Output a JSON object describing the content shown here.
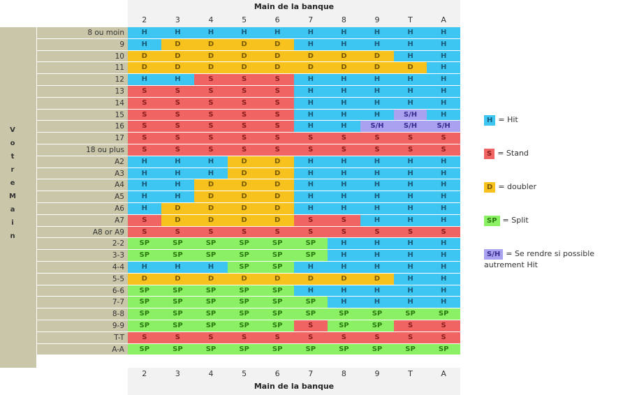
{
  "chart_data": {
    "type": "table",
    "title": "Main de la banque",
    "row_axis_label": "Votre Main",
    "columns": [
      "2",
      "3",
      "4",
      "5",
      "6",
      "7",
      "8",
      "9",
      "T",
      "A"
    ],
    "rows": [
      {
        "label": "8 ou moin",
        "cells": [
          "H",
          "H",
          "H",
          "H",
          "H",
          "H",
          "H",
          "H",
          "H",
          "H"
        ]
      },
      {
        "label": "9",
        "cells": [
          "H",
          "D",
          "D",
          "D",
          "D",
          "H",
          "H",
          "H",
          "H",
          "H"
        ]
      },
      {
        "label": "10",
        "cells": [
          "D",
          "D",
          "D",
          "D",
          "D",
          "D",
          "D",
          "D",
          "H",
          "H"
        ]
      },
      {
        "label": "11",
        "cells": [
          "D",
          "D",
          "D",
          "D",
          "D",
          "D",
          "D",
          "D",
          "D",
          "H"
        ]
      },
      {
        "label": "12",
        "cells": [
          "H",
          "H",
          "S",
          "S",
          "S",
          "H",
          "H",
          "H",
          "H",
          "H"
        ]
      },
      {
        "label": "13",
        "cells": [
          "S",
          "S",
          "S",
          "S",
          "S",
          "H",
          "H",
          "H",
          "H",
          "H"
        ]
      },
      {
        "label": "14",
        "cells": [
          "S",
          "S",
          "S",
          "S",
          "S",
          "H",
          "H",
          "H",
          "H",
          "H"
        ]
      },
      {
        "label": "15",
        "cells": [
          "S",
          "S",
          "S",
          "S",
          "S",
          "H",
          "H",
          "H",
          "S/H",
          "H"
        ]
      },
      {
        "label": "16",
        "cells": [
          "S",
          "S",
          "S",
          "S",
          "S",
          "H",
          "H",
          "S/H",
          "S/H",
          "S/H"
        ]
      },
      {
        "label": "17",
        "cells": [
          "S",
          "S",
          "S",
          "S",
          "S",
          "S",
          "S",
          "S",
          "S",
          "S"
        ]
      },
      {
        "label": "18 ou plus",
        "cells": [
          "S",
          "S",
          "S",
          "S",
          "S",
          "S",
          "S",
          "S",
          "S",
          "S"
        ]
      },
      {
        "label": "A2",
        "cells": [
          "H",
          "H",
          "H",
          "D",
          "D",
          "H",
          "H",
          "H",
          "H",
          "H"
        ]
      },
      {
        "label": "A3",
        "cells": [
          "H",
          "H",
          "H",
          "D",
          "D",
          "H",
          "H",
          "H",
          "H",
          "H"
        ]
      },
      {
        "label": "A4",
        "cells": [
          "H",
          "H",
          "D",
          "D",
          "D",
          "H",
          "H",
          "H",
          "H",
          "H"
        ]
      },
      {
        "label": "A5",
        "cells": [
          "H",
          "H",
          "D",
          "D",
          "D",
          "H",
          "H",
          "H",
          "H",
          "H"
        ]
      },
      {
        "label": "A6",
        "cells": [
          "H",
          "D",
          "D",
          "D",
          "D",
          "H",
          "H",
          "H",
          "H",
          "H"
        ]
      },
      {
        "label": "A7",
        "cells": [
          "S",
          "D",
          "D",
          "D",
          "D",
          "S",
          "S",
          "H",
          "H",
          "H"
        ]
      },
      {
        "label": "A8 or A9",
        "cells": [
          "S",
          "S",
          "S",
          "S",
          "S",
          "S",
          "S",
          "S",
          "S",
          "S"
        ]
      },
      {
        "label": "2-2",
        "cells": [
          "SP",
          "SP",
          "SP",
          "SP",
          "SP",
          "SP",
          "H",
          "H",
          "H",
          "H"
        ]
      },
      {
        "label": "3-3",
        "cells": [
          "SP",
          "SP",
          "SP",
          "SP",
          "SP",
          "SP",
          "H",
          "H",
          "H",
          "H"
        ]
      },
      {
        "label": "4-4",
        "cells": [
          "H",
          "H",
          "H",
          "SP",
          "SP",
          "H",
          "H",
          "H",
          "H",
          "H"
        ]
      },
      {
        "label": "5-5",
        "cells": [
          "D",
          "D",
          "D",
          "D",
          "D",
          "D",
          "D",
          "D",
          "H",
          "H"
        ]
      },
      {
        "label": "6-6",
        "cells": [
          "SP",
          "SP",
          "SP",
          "SP",
          "SP",
          "H",
          "H",
          "H",
          "H",
          "H"
        ]
      },
      {
        "label": "7-7",
        "cells": [
          "SP",
          "SP",
          "SP",
          "SP",
          "SP",
          "SP",
          "H",
          "H",
          "H",
          "H"
        ]
      },
      {
        "label": "8-8",
        "cells": [
          "SP",
          "SP",
          "SP",
          "SP",
          "SP",
          "SP",
          "SP",
          "SP",
          "SP",
          "SP"
        ]
      },
      {
        "label": "9-9",
        "cells": [
          "SP",
          "SP",
          "SP",
          "SP",
          "SP",
          "S",
          "SP",
          "SP",
          "S",
          "S"
        ]
      },
      {
        "label": "T-T",
        "cells": [
          "S",
          "S",
          "S",
          "S",
          "S",
          "S",
          "S",
          "S",
          "S",
          "S"
        ]
      },
      {
        "label": "A-A",
        "cells": [
          "SP",
          "SP",
          "SP",
          "SP",
          "SP",
          "SP",
          "SP",
          "SP",
          "SP",
          "SP"
        ]
      }
    ],
    "legend": [
      {
        "code": "H",
        "text": "= Hit"
      },
      {
        "code": "S",
        "text": "= Stand"
      },
      {
        "code": "D",
        "text": "= doubler"
      },
      {
        "code": "SP",
        "text": "= Split"
      },
      {
        "code": "S/H",
        "text": "= Se rendre si possible",
        "text2": "autrement Hit"
      }
    ],
    "colors": {
      "H": "#3ec6f2",
      "S": "#f06464",
      "D": "#f8c21e",
      "SP": "#8cf064",
      "S/H": "#a9a2f0"
    },
    "text_colors": {
      "H": "#1a5a78",
      "S": "#8a1c1c",
      "D": "#7a5a00",
      "SP": "#2a7a10",
      "S/H": "#3a2a90"
    }
  }
}
